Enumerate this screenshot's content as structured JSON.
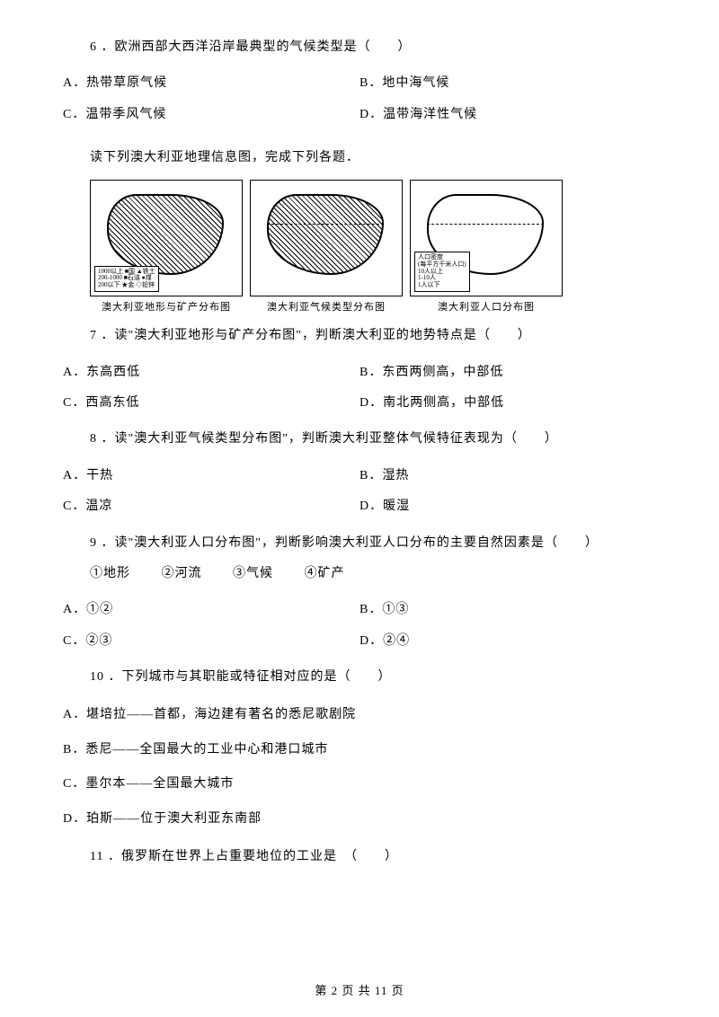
{
  "q6": {
    "text": "6 ．欧洲西部大西洋沿岸最典型的气候类型是（　　）",
    "A": "A．热带草原气候",
    "B": "B．地中海气候",
    "C": "C．温带季风气候",
    "D": "D．温带海洋性气候"
  },
  "instr1": "读下列澳大利亚地理信息图，完成下列各题．",
  "maps": {
    "cap1": "澳大利亚地形与矿产分布图",
    "cap2": "澳大利亚气候类型分布图",
    "cap3": "澳大利亚人口分布图",
    "legend1a": "1000以上 ■国 ▲铁土",
    "legend1b": "200-1000 ■石油 ●煤",
    "legend1c": "200以下 ★金 ◇铅锌",
    "legend3_title": "人口密度",
    "legend3_sub": "(每平方千米人口)",
    "legend3a": "10人以上",
    "legend3b": "1-10人",
    "legend3c": "1人以下"
  },
  "q7": {
    "text": "7 ．读\"澳大利亚地形与矿产分布图\"，判断澳大利亚的地势特点是（　　）",
    "A": "A．东高西低",
    "B": "B．东西两侧高，中部低",
    "C": "C．西高东低",
    "D": "D．南北两侧高，中部低"
  },
  "q8": {
    "text": "8 ．读\"澳大利亚气候类型分布图\"，判断澳大利亚整体气候特征表现为（　　）",
    "A": "A．干热",
    "B": "B．湿热",
    "C": "C．温凉",
    "D": "D．暖湿"
  },
  "q9": {
    "text": "9 ．读\"澳大利亚人口分布图\"，判断影响澳大利亚人口分布的主要自然因素是（　　）",
    "items": {
      "i1": "①地形",
      "i2": "②河流",
      "i3": "③气候",
      "i4": "④矿产"
    },
    "A": "A．①②",
    "B": "B．①③",
    "C": "C．②③",
    "D": "D．②④"
  },
  "q10": {
    "text": "10 ．下列城市与其职能或特征相对应的是（　　）",
    "A": "A．堪培拉——首都，海边建有著名的悉尼歌剧院",
    "B": "B．悉尼——全国最大的工业中心和港口城市",
    "C": "C．墨尔本——全国最大城市",
    "D": "D．珀斯——位于澳大利亚东南部"
  },
  "q11": {
    "text": "11 ．俄罗斯在世界上占重要地位的工业是　（　　）"
  },
  "footer": "第 2 页 共 11 页"
}
